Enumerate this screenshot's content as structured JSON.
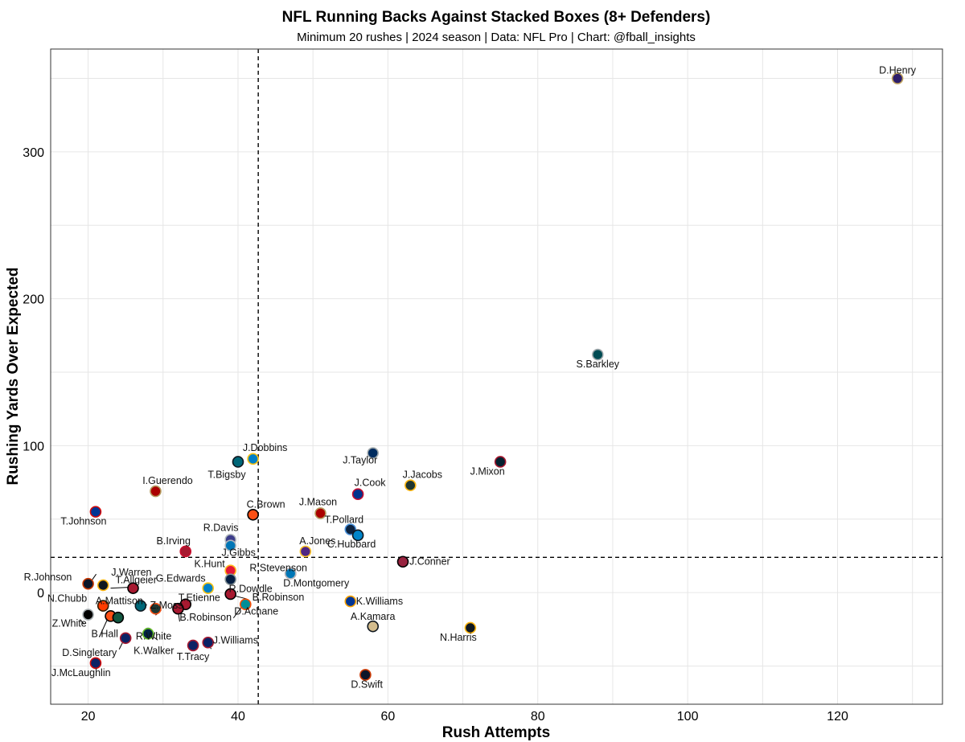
{
  "chart_data": {
    "type": "scatter",
    "title": "NFL Running Backs Against Stacked Boxes (8+ Defenders)",
    "subtitle": "Minimum 20 rushes | 2024 season | Data: NFL Pro | Chart: @fball_insights",
    "xlabel": "Rush Attempts",
    "ylabel": "Rushing Yards Over Expected",
    "xlim": [
      15,
      134
    ],
    "ylim": [
      -76,
      370
    ],
    "xticks": [
      20,
      40,
      60,
      80,
      100,
      120
    ],
    "yticks": [
      0,
      100,
      200,
      300
    ],
    "grid": true,
    "reference_lines": {
      "x": 42.7,
      "y": 24
    },
    "points": [
      {
        "label": "D.Henry",
        "x": 128,
        "y": 350,
        "fill": "#2d1e6b",
        "edge": "#c2a560"
      },
      {
        "label": "S.Barkley",
        "x": 88,
        "y": 162,
        "fill": "#004c54",
        "edge": "#a5acaf"
      },
      {
        "label": "J.Dobbins",
        "x": 42,
        "y": 91,
        "fill": "#0080c6",
        "edge": "#ffc20e"
      },
      {
        "label": "T.Bigsby",
        "x": 40,
        "y": 89,
        "fill": "#006778",
        "edge": "#101820"
      },
      {
        "label": "J.Taylor",
        "x": 58,
        "y": 95,
        "fill": "#002c5f",
        "edge": "#a2aaad"
      },
      {
        "label": "J.Mixon",
        "x": 75,
        "y": 89,
        "fill": "#03202f",
        "edge": "#a71930"
      },
      {
        "label": "J.Jacobs",
        "x": 63,
        "y": 73,
        "fill": "#203731",
        "edge": "#ffb612"
      },
      {
        "label": "J.Cook",
        "x": 56,
        "y": 67,
        "fill": "#00338d",
        "edge": "#c60c30"
      },
      {
        "label": "I.Guerendo",
        "x": 29,
        "y": 69,
        "fill": "#aa0000",
        "edge": "#b3995d"
      },
      {
        "label": "T.Johnson",
        "x": 21,
        "y": 55,
        "fill": "#003594",
        "edge": "#d50a0a"
      },
      {
        "label": "C.Brown",
        "x": 42,
        "y": 53,
        "fill": "#fb4f14",
        "edge": "#000000"
      },
      {
        "label": "J.Mason",
        "x": 51,
        "y": 54,
        "fill": "#aa0000",
        "edge": "#b3995d"
      },
      {
        "label": "T.Pollard",
        "x": 55,
        "y": 43,
        "fill": "#0c2340",
        "edge": "#4b92db"
      },
      {
        "label": "C.Hubbard",
        "x": 56,
        "y": 39,
        "fill": "#0085ca",
        "edge": "#101820"
      },
      {
        "label": "R.Davis",
        "x": 39,
        "y": 36,
        "fill": "#3c3c8a",
        "edge": "#b0b7bc"
      },
      {
        "label": "J.Gibbs",
        "x": 39,
        "y": 32,
        "fill": "#0076b6",
        "edge": "#b0b7bc"
      },
      {
        "label": "B.Irving",
        "x": 33,
        "y": 28,
        "fill": "#a71930",
        "edge": "#c8102e"
      },
      {
        "label": "A.Jones",
        "x": 49,
        "y": 28,
        "fill": "#4f2683",
        "edge": "#ffc62f"
      },
      {
        "label": "J.Conner",
        "x": 62,
        "y": 21,
        "fill": "#97233f",
        "edge": "#000000"
      },
      {
        "label": "K.Hunt",
        "x": 39,
        "y": 15,
        "fill": "#e31837",
        "edge": "#ffb81c"
      },
      {
        "label": "R.Stevenson",
        "x": 47,
        "y": 13,
        "fill": "#0b5fa5",
        "edge": "#c60c30"
      },
      {
        "label": "R.Dowdle",
        "x": 39,
        "y": 9,
        "fill": "#041e42",
        "edge": "#869397"
      },
      {
        "label": "R.Johnson",
        "x": 20,
        "y": 6,
        "fill": "#0b162a",
        "edge": "#c83803"
      },
      {
        "label": "J.Warren",
        "x": 22,
        "y": 5,
        "fill": "#101820",
        "edge": "#ffb612"
      },
      {
        "label": "T.Allgeier",
        "x": 26,
        "y": 3,
        "fill": "#a71930",
        "edge": "#000000"
      },
      {
        "label": "G.Edwards",
        "x": 36,
        "y": 3,
        "fill": "#0080c6",
        "edge": "#ffc20e"
      },
      {
        "label": "B.Robinson",
        "x": 39,
        "y": -1,
        "fill": "#a71930",
        "edge": "#000000"
      },
      {
        "label": "D.Montgomery",
        "x": 47,
        "y": 13,
        "fill": "#0076b6",
        "edge": "#b0b7bc"
      },
      {
        "label": "K.Williams",
        "x": 55,
        "y": -6,
        "fill": "#003594",
        "edge": "#ffa300"
      },
      {
        "label": "D.Achane",
        "x": 41,
        "y": -8,
        "fill": "#008e97",
        "edge": "#fc4c02"
      },
      {
        "label": "N.Chubb",
        "x": 22,
        "y": -9,
        "fill": "#ff3c00",
        "edge": "#311d00"
      },
      {
        "label": "A.Mattison",
        "x": 27,
        "y": -9,
        "fill": "#006778",
        "edge": "#101820"
      },
      {
        "label": "T.Etienne",
        "x": 33,
        "y": -8,
        "fill": "#a71930",
        "edge": "#000000"
      },
      {
        "label": "Z.Moss",
        "x": 29,
        "y": -11,
        "fill": "#203731",
        "edge": "#fb4f14"
      },
      {
        "label": "B.Robinson",
        "x": 32,
        "y": -11,
        "fill": "#a71930",
        "edge": "#000000"
      },
      {
        "label": "Z.White",
        "x": 20,
        "y": -15,
        "fill": "#000000",
        "edge": "#a5acaf"
      },
      {
        "label": "A.Kamara",
        "x": 58,
        "y": -23,
        "fill": "#d3bc8d",
        "edge": "#101820"
      },
      {
        "label": "N.Harris",
        "x": 71,
        "y": -24,
        "fill": "#101820",
        "edge": "#ffb612"
      },
      {
        "label": "B.Hall",
        "x": 23,
        "y": -16,
        "fill": "#fb4f14",
        "edge": "#000000"
      },
      {
        "label": "",
        "x": 24,
        "y": -17,
        "fill": "#125740",
        "edge": "#000000"
      },
      {
        "label": "R.White",
        "x": 28,
        "y": -27,
        "fill": "#125740",
        "edge": "#ffffff"
      },
      {
        "label": "D.Singletary",
        "x": 25,
        "y": -31,
        "fill": "#0b2265",
        "edge": "#a71930"
      },
      {
        "label": "K.Walker",
        "x": 28,
        "y": -28,
        "fill": "#002244",
        "edge": "#69be28"
      },
      {
        "label": "J.Williams",
        "x": 36,
        "y": -34,
        "fill": "#0b2265",
        "edge": "#a71930"
      },
      {
        "label": "T.Tracy",
        "x": 34,
        "y": -36,
        "fill": "#0b2265",
        "edge": "#a71930"
      },
      {
        "label": "J.McLaughlin",
        "x": 21,
        "y": -48,
        "fill": "#0b2265",
        "edge": "#d50a0a"
      },
      {
        "label": "D.Swift",
        "x": 57,
        "y": -56,
        "fill": "#0b162a",
        "edge": "#c83803"
      }
    ]
  }
}
